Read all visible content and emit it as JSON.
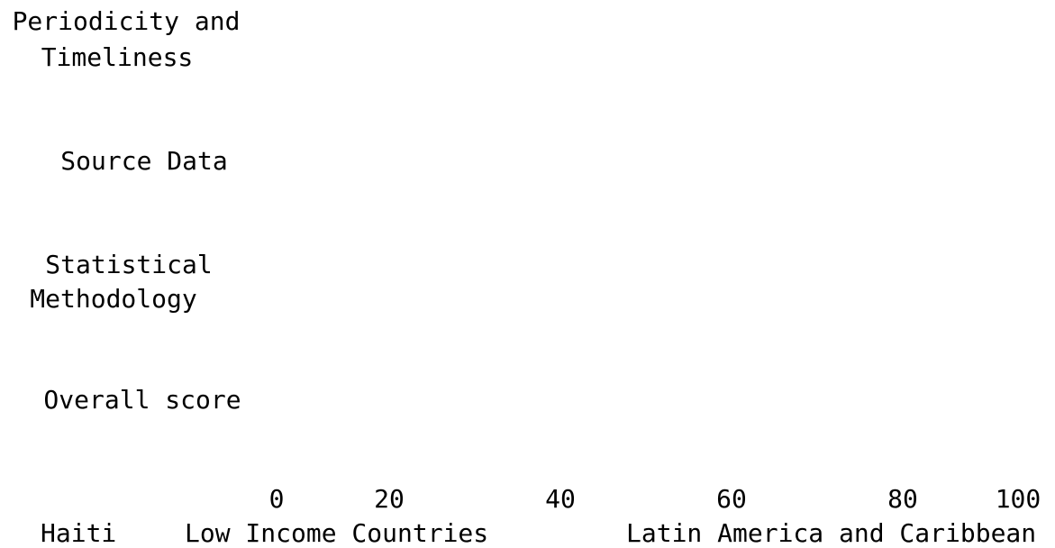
{
  "categories": [
    [
      "Periodicity and",
      "Timeliness"
    ],
    [
      "Source Data"
    ],
    [
      "Statistical",
      "Methodology"
    ],
    [
      "Overall score"
    ]
  ],
  "axis_ticks": [
    "0",
    "20",
    "40",
    "60",
    "80",
    "100"
  ],
  "legend": [
    "Haiti",
    "Low Income Countries",
    "Latin America and Caribbean"
  ]
}
